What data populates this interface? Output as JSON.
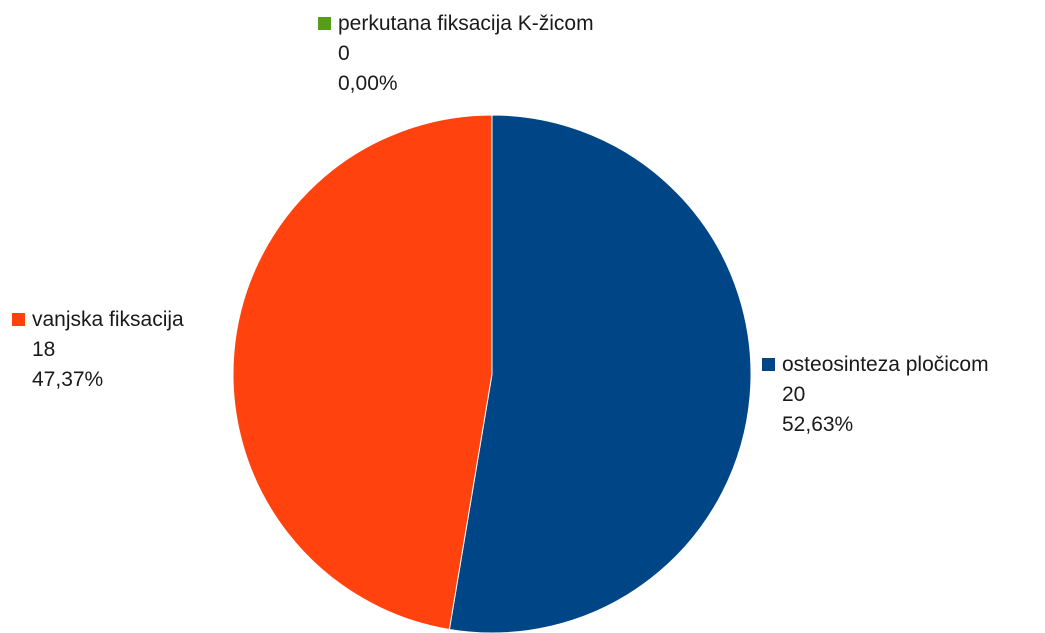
{
  "chart_data": {
    "type": "pie",
    "title": "",
    "slices": [
      {
        "name": "osteosinteza pločicom",
        "value": 20,
        "value_label": "20",
        "percent_label": "52,63%",
        "color": "#004586"
      },
      {
        "name": "vanjska fiksacija",
        "value": 18,
        "value_label": "18",
        "percent_label": "47,37%",
        "color": "#ff420e"
      },
      {
        "name": "perkutana fiksacija K-žicom",
        "value": 0,
        "value_label": "0",
        "percent_label": "0,00%",
        "color": "#579d1c"
      }
    ],
    "start_direction": "top",
    "order": "clockwise",
    "legend": "none"
  }
}
